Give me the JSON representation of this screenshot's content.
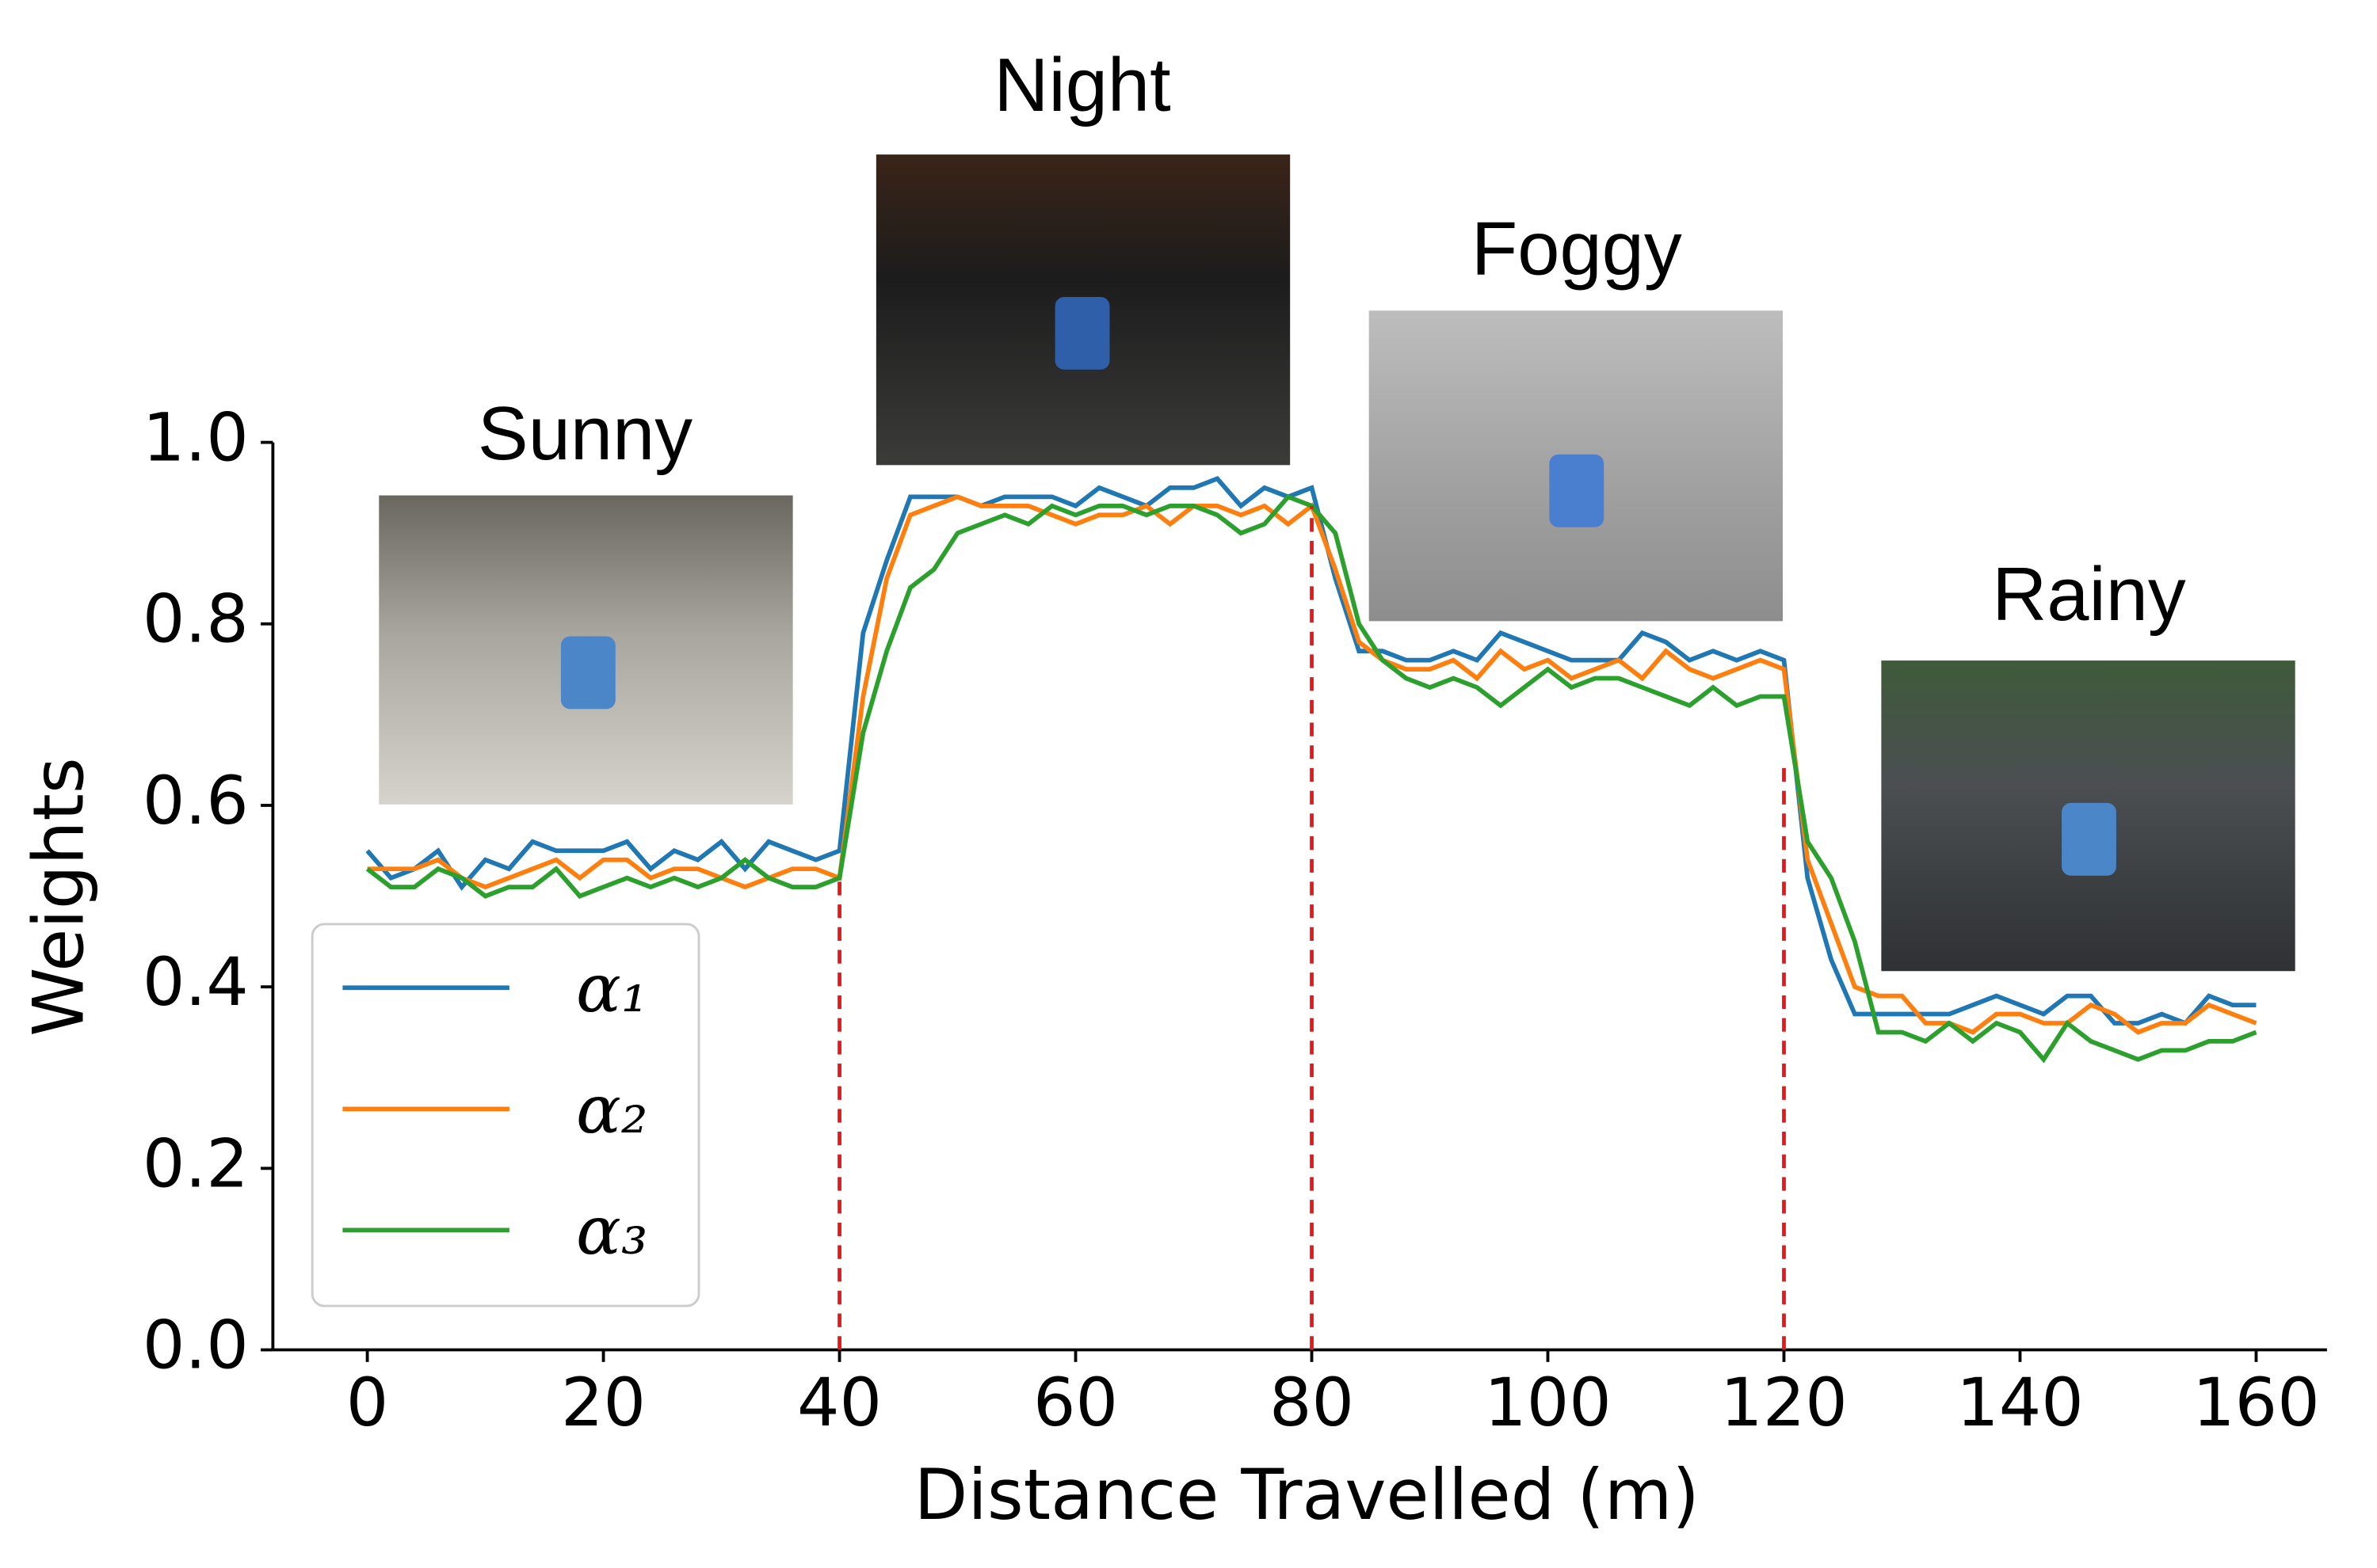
{
  "chart_data": {
    "type": "line",
    "xlabel": "Distance Travelled (m)",
    "ylabel": "Weights",
    "x": [
      0,
      2,
      4,
      6,
      8,
      10,
      12,
      14,
      16,
      18,
      20,
      22,
      24,
      26,
      28,
      30,
      32,
      34,
      36,
      38,
      40,
      42,
      44,
      46,
      48,
      50,
      52,
      54,
      56,
      58,
      60,
      62,
      64,
      66,
      68,
      70,
      72,
      74,
      76,
      78,
      80,
      82,
      84,
      86,
      88,
      90,
      92,
      94,
      96,
      98,
      100,
      102,
      104,
      106,
      108,
      110,
      112,
      114,
      116,
      118,
      120,
      122,
      124,
      126,
      128,
      130,
      132,
      134,
      136,
      138,
      140,
      142,
      144,
      146,
      148,
      150,
      152,
      154,
      156,
      158,
      160
    ],
    "series": [
      {
        "name": "α₁",
        "color": "#1f77b4",
        "values": [
          0.55,
          0.52,
          0.53,
          0.55,
          0.51,
          0.54,
          0.53,
          0.56,
          0.55,
          0.55,
          0.55,
          0.56,
          0.53,
          0.55,
          0.54,
          0.56,
          0.53,
          0.56,
          0.55,
          0.54,
          0.55,
          0.79,
          0.87,
          0.94,
          0.94,
          0.94,
          0.93,
          0.94,
          0.94,
          0.94,
          0.93,
          0.95,
          0.94,
          0.93,
          0.95,
          0.95,
          0.96,
          0.93,
          0.95,
          0.94,
          0.95,
          0.85,
          0.77,
          0.77,
          0.76,
          0.76,
          0.77,
          0.76,
          0.79,
          0.78,
          0.77,
          0.76,
          0.76,
          0.76,
          0.79,
          0.78,
          0.76,
          0.77,
          0.76,
          0.77,
          0.76,
          0.52,
          0.43,
          0.37,
          0.37,
          0.37,
          0.37,
          0.37,
          0.38,
          0.39,
          0.38,
          0.37,
          0.39,
          0.39,
          0.36,
          0.36,
          0.37,
          0.36,
          0.39,
          0.38,
          0.38
        ]
      },
      {
        "name": "α₂",
        "color": "#ff7f0e",
        "values": [
          0.53,
          0.53,
          0.53,
          0.54,
          0.52,
          0.51,
          0.52,
          0.53,
          0.54,
          0.52,
          0.54,
          0.54,
          0.52,
          0.53,
          0.53,
          0.52,
          0.51,
          0.52,
          0.53,
          0.53,
          0.52,
          0.72,
          0.85,
          0.92,
          0.93,
          0.94,
          0.93,
          0.93,
          0.93,
          0.92,
          0.91,
          0.92,
          0.92,
          0.93,
          0.91,
          0.93,
          0.93,
          0.92,
          0.93,
          0.91,
          0.93,
          0.86,
          0.78,
          0.76,
          0.75,
          0.75,
          0.76,
          0.74,
          0.77,
          0.75,
          0.76,
          0.74,
          0.75,
          0.76,
          0.74,
          0.77,
          0.75,
          0.74,
          0.75,
          0.76,
          0.75,
          0.54,
          0.47,
          0.4,
          0.39,
          0.39,
          0.36,
          0.36,
          0.35,
          0.37,
          0.37,
          0.36,
          0.36,
          0.38,
          0.37,
          0.35,
          0.36,
          0.36,
          0.38,
          0.37,
          0.36
        ]
      },
      {
        "name": "α₃",
        "color": "#2ca02c",
        "values": [
          0.53,
          0.51,
          0.51,
          0.53,
          0.52,
          0.5,
          0.51,
          0.51,
          0.53,
          0.5,
          0.51,
          0.52,
          0.51,
          0.52,
          0.51,
          0.52,
          0.54,
          0.52,
          0.51,
          0.51,
          0.52,
          0.68,
          0.77,
          0.84,
          0.86,
          0.9,
          0.91,
          0.92,
          0.91,
          0.93,
          0.92,
          0.93,
          0.93,
          0.92,
          0.93,
          0.93,
          0.92,
          0.9,
          0.91,
          0.94,
          0.93,
          0.9,
          0.8,
          0.76,
          0.74,
          0.73,
          0.74,
          0.73,
          0.71,
          0.73,
          0.75,
          0.73,
          0.74,
          0.74,
          0.73,
          0.72,
          0.71,
          0.73,
          0.71,
          0.72,
          0.72,
          0.56,
          0.52,
          0.45,
          0.35,
          0.35,
          0.34,
          0.36,
          0.34,
          0.36,
          0.35,
          0.32,
          0.36,
          0.34,
          0.33,
          0.32,
          0.33,
          0.33,
          0.34,
          0.34,
          0.35
        ]
      }
    ],
    "xlim": [
      -8,
      166
    ],
    "ylim": [
      0,
      1
    ],
    "xticks": [
      0,
      20,
      40,
      60,
      80,
      100,
      120,
      140,
      160
    ],
    "yticks": [
      {
        "value": 0,
        "label": "0.0"
      },
      0.2,
      0.4,
      0.6,
      0.8,
      {
        "value": 1,
        "label": "1.0"
      }
    ],
    "vlines": [
      {
        "x": 40,
        "top": 0.52,
        "color": "#e31a1c"
      },
      {
        "x": 80,
        "top": 0.93,
        "color": "#e31a1c"
      },
      {
        "x": 120,
        "top": 0.65,
        "color": "#e31a1c"
      }
    ],
    "annotations": [
      "Sunny",
      "Night",
      "Foggy",
      "Rainy"
    ],
    "legend": "lower left"
  }
}
